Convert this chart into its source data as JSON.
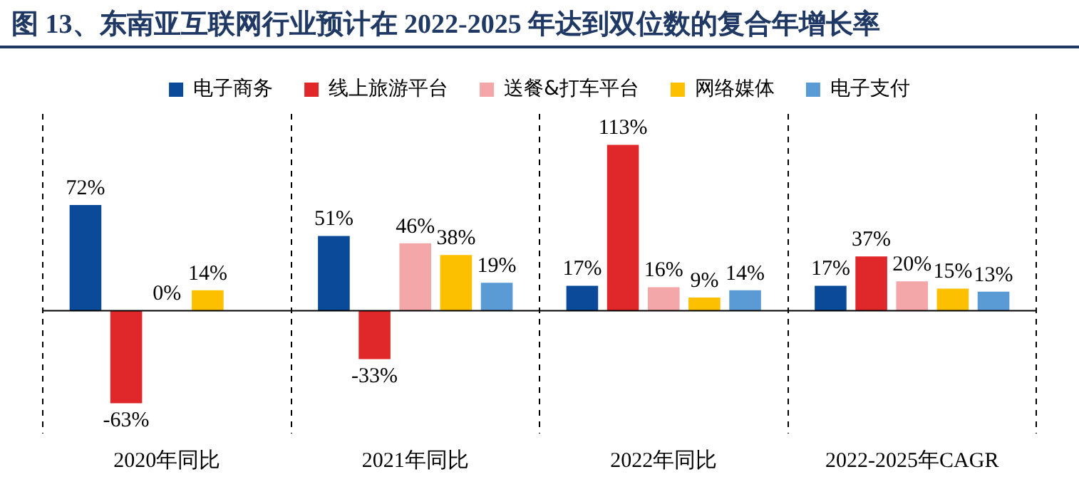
{
  "chart_data": {
    "type": "bar",
    "title": "图 13、东南亚互联网行业预计在 2022-2025 年达到双位数的复合年增长率",
    "categories": [
      "2020年同比",
      "2021年同比",
      "2022年同比",
      "2022-2025年CAGR"
    ],
    "series": [
      {
        "name": "电子商务",
        "color": "#0b4a99",
        "values": [
          72,
          51,
          17,
          17
        ],
        "value_labels": [
          "72%",
          "51%",
          "17%",
          "17%"
        ]
      },
      {
        "name": "线上旅游平台",
        "color": "#e0282a",
        "values": [
          -63,
          -33,
          113,
          37
        ],
        "value_labels": [
          "-63%",
          "-33%",
          "113%",
          "37%"
        ]
      },
      {
        "name": "送餐&打车平台",
        "color": "#f4a7a8",
        "values": [
          0,
          46,
          16,
          20
        ],
        "value_labels": [
          "0%",
          "46%",
          "16%",
          "20%"
        ]
      },
      {
        "name": "网络媒体",
        "color": "#fcc000",
        "values": [
          14,
          38,
          9,
          15
        ],
        "value_labels": [
          "14%",
          "38%",
          "9%",
          "15%"
        ]
      },
      {
        "name": "电子支付",
        "color": "#5b9bd5",
        "values": [
          null,
          19,
          14,
          13
        ],
        "value_labels": [
          null,
          "19%",
          "14%",
          "13%"
        ]
      }
    ],
    "legend": "top",
    "grid": "x"
  }
}
